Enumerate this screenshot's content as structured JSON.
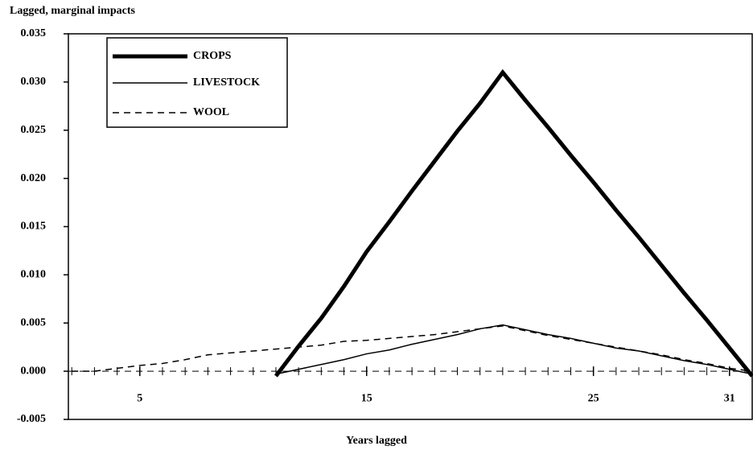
{
  "chart_data": {
    "type": "line",
    "title": "Lagged, marginal impacts",
    "xlabel": "Years lagged",
    "x": [
      2,
      3,
      4,
      5,
      6,
      7,
      8,
      9,
      10,
      11,
      12,
      13,
      14,
      15,
      16,
      17,
      18,
      19,
      20,
      21,
      22,
      23,
      24,
      25,
      26,
      27,
      28,
      29,
      30,
      31,
      32
    ],
    "series": [
      {
        "name": "CROPS",
        "color": "#000000",
        "width": 5,
        "dash": "none",
        "values": [
          null,
          null,
          null,
          null,
          null,
          null,
          null,
          null,
          null,
          -0.0005,
          0.0026,
          0.0055,
          0.0088,
          0.0124,
          0.0155,
          0.0187,
          0.0218,
          0.0249,
          0.0278,
          0.031,
          0.0281,
          0.0253,
          0.0224,
          0.0196,
          0.0167,
          0.0139,
          0.011,
          0.0081,
          0.0053,
          0.0024,
          -0.0005
        ]
      },
      {
        "name": "LIVESTOCK",
        "color": "#000000",
        "width": 1.5,
        "dash": "none",
        "values": [
          null,
          null,
          null,
          null,
          null,
          null,
          null,
          null,
          null,
          -0.0003,
          0.0002,
          0.0007,
          0.0012,
          0.0018,
          0.0022,
          0.0028,
          0.0033,
          0.0038,
          0.0044,
          0.0048,
          0.0043,
          0.0038,
          0.0034,
          0.0029,
          0.0024,
          0.0021,
          0.0016,
          0.0011,
          0.0007,
          0.0002,
          -0.0003
        ]
      },
      {
        "name": "WOOL",
        "color": "#000000",
        "width": 1.5,
        "dash": "8 6",
        "values": [
          0,
          0,
          0.0003,
          0.0006,
          0.0008,
          0.0012,
          0.0017,
          0.0019,
          0.0021,
          0.0023,
          0.0025,
          0.0027,
          0.0031,
          0.0032,
          0.0034,
          0.0036,
          0.0038,
          0.0041,
          0.0044,
          0.0047,
          0.0042,
          0.0037,
          0.0033,
          0.0029,
          0.0025,
          0.0021,
          0.0017,
          0.0012,
          0.0008,
          0.0003,
          0
        ]
      }
    ],
    "xlim": [
      1.85,
      32
    ],
    "xticks": [
      5,
      15,
      25,
      31
    ],
    "ylim": [
      -0.005,
      0.035
    ],
    "yticks": [
      -0.005,
      {
        "value": 0,
        "label": "0.000"
      },
      0.005,
      {
        "value": 0.01,
        "label": "0.010"
      },
      0.015,
      {
        "value": 0.02,
        "label": "0.020"
      },
      0.025,
      {
        "value": 0.03,
        "label": "0.030"
      },
      0.035
    ],
    "legend": "upper left",
    "grid": false
  }
}
